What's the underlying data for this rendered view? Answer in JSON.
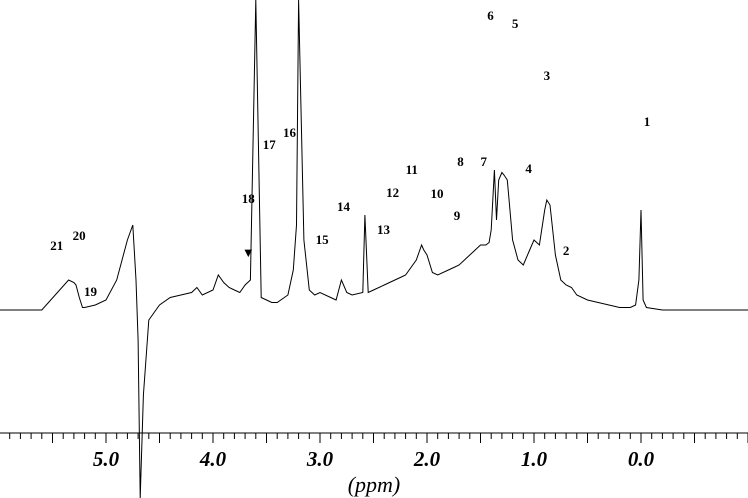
{
  "chart_data": {
    "type": "line",
    "title": "",
    "xlabel": "(ppm)",
    "ylabel": "",
    "x_reversed": true,
    "xlim": [
      6.0,
      -1.0
    ],
    "x_ticks": [
      5.0,
      4.0,
      3.0,
      2.0,
      1.0,
      0.0
    ],
    "x_tick_labels": [
      "5.0",
      "4.0",
      "3.0",
      "2.0",
      "1.0",
      "0.0"
    ],
    "grid": false,
    "series": [
      {
        "x": [
          6.0,
          5.6,
          5.35,
          5.3,
          5.28,
          5.25,
          5.22,
          5.2,
          5.1,
          5.0,
          4.9,
          4.8,
          4.75,
          4.72,
          4.7,
          4.68,
          4.65,
          4.6,
          4.5,
          4.4,
          4.3,
          4.2,
          4.15,
          4.1,
          4.0,
          3.95,
          3.9,
          3.85,
          3.8,
          3.75,
          3.7,
          3.65,
          3.6,
          3.55,
          3.5,
          3.45,
          3.4,
          3.3,
          3.25,
          3.22,
          3.2,
          3.15,
          3.1,
          3.05,
          3.0,
          2.9,
          2.85,
          2.8,
          2.75,
          2.7,
          2.6,
          2.58,
          2.55,
          2.5,
          2.4,
          2.3,
          2.25,
          2.2,
          2.1,
          2.05,
          2.03,
          2.0,
          1.95,
          1.9,
          1.8,
          1.75,
          1.7,
          1.6,
          1.5,
          1.45,
          1.42,
          1.4,
          1.37,
          1.35,
          1.33,
          1.3,
          1.28,
          1.25,
          1.2,
          1.15,
          1.1,
          1.05,
          1.0,
          0.95,
          0.9,
          0.88,
          0.85,
          0.8,
          0.75,
          0.7,
          0.65,
          0.6,
          0.5,
          0.4,
          0.3,
          0.2,
          0.1,
          0.05,
          0.02,
          0.0,
          -0.02,
          -0.05,
          -0.2,
          -0.5,
          -1.0
        ],
        "y": [
          0,
          0,
          60,
          55,
          50,
          25,
          5,
          5,
          10,
          20,
          60,
          140,
          170,
          60,
          -60,
          -560,
          -170,
          -20,
          10,
          25,
          30,
          35,
          45,
          30,
          40,
          70,
          55,
          45,
          40,
          35,
          50,
          60,
          620,
          25,
          20,
          15,
          15,
          30,
          80,
          170,
          620,
          140,
          40,
          30,
          35,
          25,
          20,
          60,
          35,
          30,
          35,
          190,
          35,
          40,
          50,
          60,
          65,
          70,
          100,
          130,
          120,
          110,
          75,
          70,
          80,
          85,
          90,
          110,
          130,
          130,
          135,
          160,
          280,
          180,
          260,
          275,
          270,
          260,
          140,
          100,
          90,
          115,
          140,
          130,
          200,
          220,
          210,
          110,
          60,
          50,
          45,
          30,
          20,
          15,
          10,
          5,
          5,
          10,
          60,
          200,
          20,
          5,
          0,
          0,
          0
        ]
      }
    ],
    "annotations": [
      {
        "label": "1",
        "x": 0.0
      },
      {
        "label": "2",
        "x": 0.7
      },
      {
        "label": "3",
        "x": 0.88
      },
      {
        "label": "4",
        "x": 1.05
      },
      {
        "label": "5",
        "x": 1.27
      },
      {
        "label": "6",
        "x": 1.35
      },
      {
        "label": "7",
        "x": 1.47
      },
      {
        "label": "8",
        "x": 1.5
      },
      {
        "label": "9",
        "x": 1.72
      },
      {
        "label": "10",
        "x": 2.0
      },
      {
        "label": "11",
        "x": 2.03
      },
      {
        "label": "12",
        "x": 2.06
      },
      {
        "label": "13",
        "x": 2.22
      },
      {
        "label": "14",
        "x": 2.78
      },
      {
        "label": "15",
        "x": 2.98
      },
      {
        "label": "16",
        "x": 3.22
      },
      {
        "label": "17",
        "x": 3.25
      },
      {
        "label": "18",
        "x": 3.67
      },
      {
        "label": "19",
        "x": 5.22
      },
      {
        "label": "20",
        "x": 5.27
      },
      {
        "label": "21",
        "x": 5.33
      }
    ],
    "marker_symbol": "▼",
    "marker_x": 3.67
  }
}
